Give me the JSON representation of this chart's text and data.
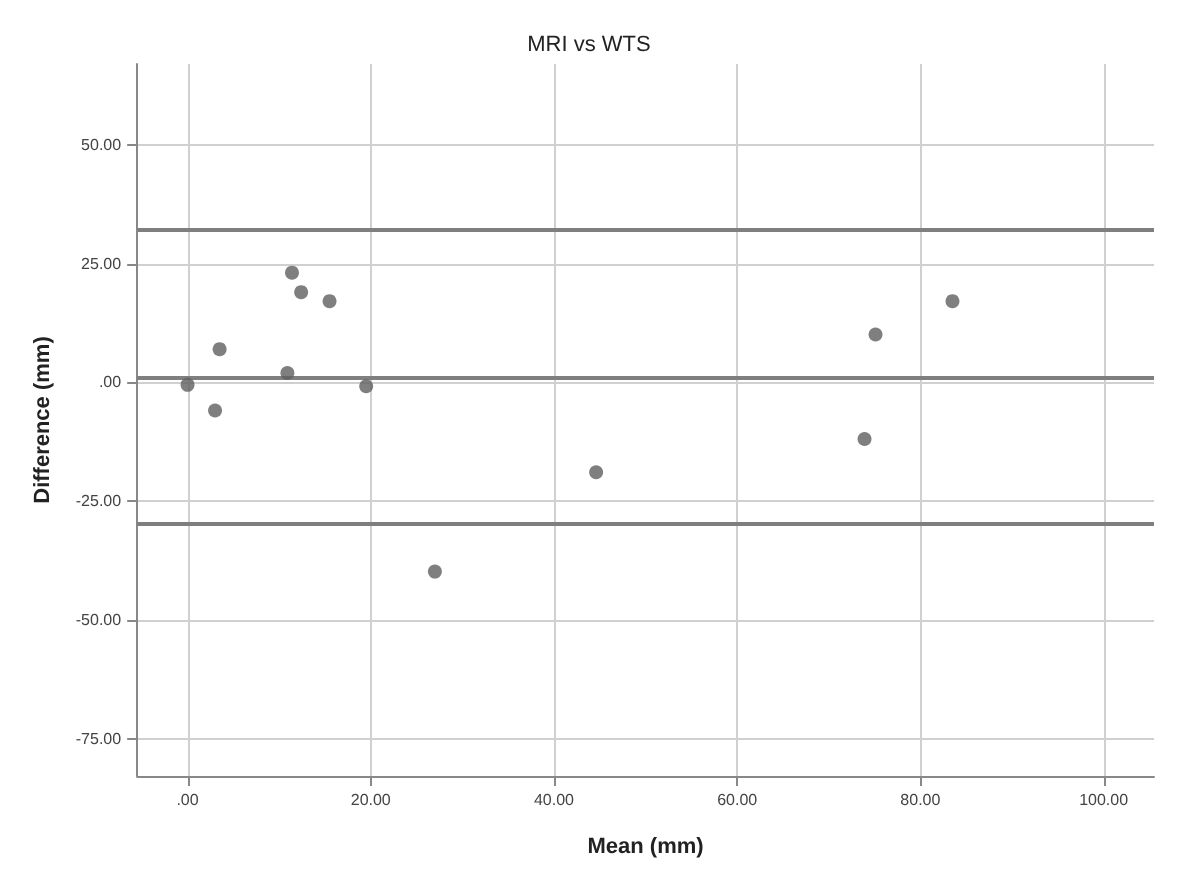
{
  "chart_data": {
    "type": "scatter",
    "title": "MRI vs WTS",
    "xlabel": "Mean (mm)",
    "ylabel": "Difference (mm)",
    "x": [
      0,
      3.0,
      3.5,
      10.9,
      11.4,
      12.4,
      15.5,
      19.5,
      27.0,
      44.6,
      73.9,
      75.1,
      83.5
    ],
    "series": [
      {
        "color": "#5f5f5f",
        "values": [
          -0.5,
          -5.9,
          7.0,
          2.0,
          23.1,
          19.0,
          17.1,
          -0.8,
          -39.8,
          -18.9,
          -11.9,
          10.1,
          17.1
        ]
      }
    ],
    "xlim": [
      -5.5,
      105.5
    ],
    "ylim": [
      -82.8,
      67
    ],
    "xticks": [
      {
        "value": 0,
        "label": ".00"
      },
      {
        "value": 20,
        "label": "20.00"
      },
      {
        "value": 40,
        "label": "40.00"
      },
      {
        "value": 60,
        "label": "60.00"
      },
      {
        "value": 80,
        "label": "80.00"
      },
      {
        "value": 100,
        "label": "100.00"
      }
    ],
    "yticks": [
      {
        "value": -75,
        "label": "-75.00"
      },
      {
        "value": -50,
        "label": "-50.00"
      },
      {
        "value": -25,
        "label": "-25.00"
      },
      {
        "value": 0,
        "label": ".00"
      },
      {
        "value": 25,
        "label": "25.00"
      },
      {
        "value": 50,
        "label": "50.00"
      }
    ],
    "ref_lines": [
      {
        "axis": "y",
        "value": 32.3,
        "color": "#7f7f7f"
      },
      {
        "axis": "y",
        "value": 1.1,
        "color": "#7f7f7f"
      },
      {
        "axis": "y",
        "value": -29.8,
        "color": "#7f7f7f"
      }
    ],
    "grid": true,
    "marker": "circle"
  }
}
